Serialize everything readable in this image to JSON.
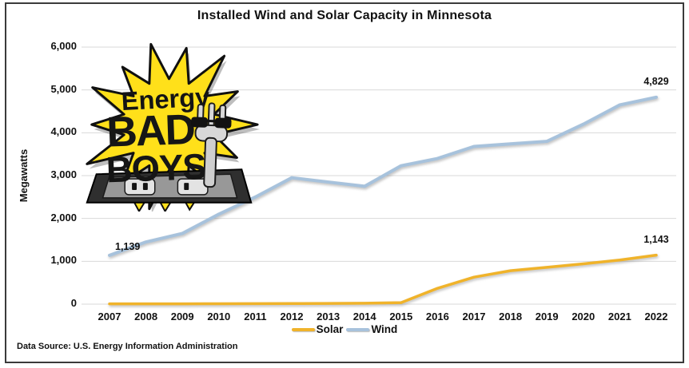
{
  "title": "Installed Wind and Solar Capacity in Minnesota",
  "source_note": "Data Source: U.S. Energy Information Administration",
  "logo": {
    "line1": "Energy",
    "line2": "BAD",
    "line3": "BOYS"
  },
  "colors": {
    "solar_line": "#F0B32A",
    "wind_line": "#A7C2DC",
    "gridline": "#D9D9D9",
    "text": "#111111",
    "frame_border": "#3B3B3B",
    "logo_yellow": "#FFE01A",
    "logo_ink": "#141414"
  },
  "chart_data": {
    "type": "line",
    "title": "Installed Wind and Solar Capacity in Minnesota",
    "xlabel": "",
    "ylabel": "Megawatts",
    "categories": [
      "2007",
      "2008",
      "2009",
      "2010",
      "2011",
      "2012",
      "2013",
      "2014",
      "2015",
      "2016",
      "2017",
      "2018",
      "2019",
      "2020",
      "2021",
      "2022"
    ],
    "series": [
      {
        "name": "Solar",
        "color": "#F0B32A",
        "values": [
          8,
          8,
          8,
          10,
          12,
          14,
          16,
          20,
          35,
          370,
          630,
          780,
          860,
          940,
          1030,
          1143
        ]
      },
      {
        "name": "Wind",
        "color": "#A7C2DC",
        "values": [
          1139,
          1450,
          1650,
          2100,
          2500,
          2950,
          2850,
          2750,
          3230,
          3400,
          3680,
          3740,
          3800,
          4200,
          4650,
          4829
        ]
      }
    ],
    "ylim": [
      0,
      6000
    ],
    "yticks": [
      0,
      1000,
      2000,
      3000,
      4000,
      5000,
      6000
    ],
    "ytick_labels": [
      "0",
      "1,000",
      "2,000",
      "3,000",
      "4,000",
      "5,000",
      "6,000"
    ],
    "grid": true,
    "legend_position": "bottom",
    "point_labels": [
      {
        "series": "Wind",
        "year": "2007",
        "text": "1,139",
        "position": "right"
      },
      {
        "series": "Wind",
        "year": "2022",
        "text": "4,829",
        "position": "above"
      },
      {
        "series": "Solar",
        "year": "2022",
        "text": "1,143",
        "position": "above"
      }
    ]
  }
}
